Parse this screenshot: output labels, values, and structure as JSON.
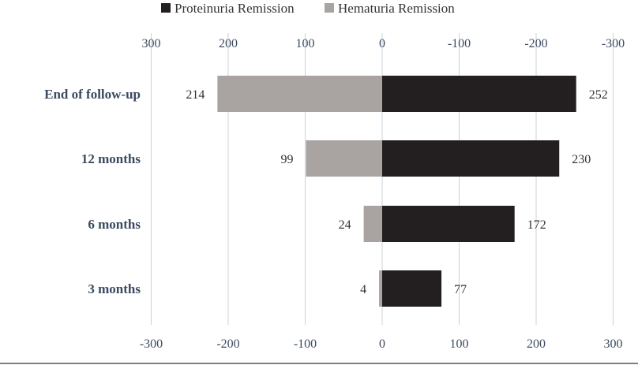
{
  "chart_data": {
    "type": "bar",
    "orientation": "horizontal",
    "layout": "diverging",
    "categories": [
      "End of follow-up",
      "12 months",
      "6 months",
      "3 months"
    ],
    "series": [
      {
        "name": "Proteinuria Remission",
        "color": "#231f20",
        "side": "right",
        "values": [
          252,
          230,
          172,
          77
        ]
      },
      {
        "name": "Hematuria Remission",
        "color": "#a9a3a2",
        "side": "left",
        "values": [
          214,
          99,
          24,
          4
        ]
      }
    ],
    "top_axis_ticks": [
      "300",
      "200",
      "100",
      "0",
      "-100",
      "-200",
      "-300"
    ],
    "bottom_axis_ticks": [
      "-300",
      "-200",
      "-100",
      "0",
      "100",
      "200",
      "300"
    ],
    "xlim": [
      -300,
      300
    ],
    "grid": true,
    "legend_position": "top-center"
  }
}
